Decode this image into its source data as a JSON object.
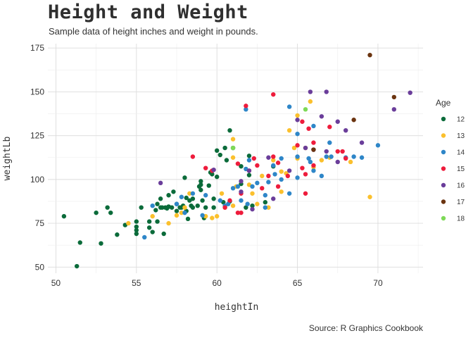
{
  "chart_data": {
    "type": "scatter",
    "title": "Height and Weight",
    "subtitle": "Sample data of height inches and weight in pounds.",
    "caption": "Source: R Graphics Cookbook",
    "xlabel": "heightIn",
    "ylabel": "weightLb",
    "xlim": [
      49.5,
      72.8
    ],
    "ylim": [
      46.5,
      177.5
    ],
    "xticks": [
      50,
      55,
      60,
      65,
      70
    ],
    "yticks": [
      50,
      75,
      100,
      125,
      150,
      175
    ],
    "grid": true,
    "legend": {
      "title": "Age",
      "position": "right",
      "entries": [
        {
          "label": "12",
          "color": "#0b6b3a"
        },
        {
          "label": "13",
          "color": "#fbc02d"
        },
        {
          "label": "14",
          "color": "#2e86c8"
        },
        {
          "label": "15",
          "color": "#ee1c3c"
        },
        {
          "label": "16",
          "color": "#6a3d9a"
        },
        {
          "label": "17",
          "color": "#6b3410"
        },
        {
          "label": "18",
          "color": "#7ed957"
        }
      ]
    },
    "series": [
      {
        "name": "12",
        "color": "#0b6b3a",
        "points": [
          [
            50.5,
            79
          ],
          [
            51.3,
            50.5
          ],
          [
            51.5,
            64
          ],
          [
            52.5,
            81
          ],
          [
            52.8,
            63.5
          ],
          [
            53.2,
            84
          ],
          [
            53.4,
            81
          ],
          [
            53.8,
            68.5
          ],
          [
            54.3,
            74
          ],
          [
            55,
            73
          ],
          [
            55,
            71
          ],
          [
            55,
            69
          ],
          [
            55,
            76
          ],
          [
            55.3,
            84
          ],
          [
            55.8,
            76
          ],
          [
            55.8,
            72.5
          ],
          [
            56,
            70
          ],
          [
            56.2,
            82.5
          ],
          [
            56.3,
            86
          ],
          [
            56.3,
            76
          ],
          [
            56.5,
            84
          ],
          [
            56.5,
            89
          ],
          [
            56.6,
            84
          ],
          [
            56.7,
            69
          ],
          [
            56.8,
            84
          ],
          [
            56.9,
            83.5
          ],
          [
            57,
            84.5
          ],
          [
            57,
            91
          ],
          [
            57.2,
            84
          ],
          [
            57.3,
            93
          ],
          [
            57.5,
            82
          ],
          [
            57.5,
            86
          ],
          [
            57.7,
            84
          ],
          [
            57.8,
            84
          ],
          [
            57.9,
            85
          ],
          [
            58,
            101
          ],
          [
            58.1,
            89.5
          ],
          [
            58.1,
            82
          ],
          [
            58.2,
            77.5
          ],
          [
            58.3,
            88
          ],
          [
            58.4,
            85
          ],
          [
            58.5,
            89
          ],
          [
            58.5,
            84
          ],
          [
            58.8,
            85
          ],
          [
            58.9,
            96
          ],
          [
            59,
            97
          ],
          [
            59,
            99
          ],
          [
            59,
            94
          ],
          [
            59.1,
            88
          ],
          [
            59.2,
            78
          ],
          [
            59.3,
            84
          ],
          [
            59.5,
            96.5
          ],
          [
            59.6,
            104
          ],
          [
            59.7,
            103
          ],
          [
            59.8,
            89
          ],
          [
            59.8,
            84
          ],
          [
            60,
            101.5
          ],
          [
            60,
            116.5
          ],
          [
            60.2,
            114
          ],
          [
            60.4,
            87
          ],
          [
            60.5,
            118
          ],
          [
            60.6,
            111
          ],
          [
            60.8,
            128
          ],
          [
            60.8,
            87.5
          ],
          [
            61,
            118
          ],
          [
            61.5,
            107.5
          ],
          [
            61.5,
            97.5
          ],
          [
            61.8,
            84
          ],
          [
            62,
            113.5
          ],
          [
            62,
            102.5
          ],
          [
            62.2,
            85
          ],
          [
            63,
            87
          ],
          [
            63.5,
            107.5
          ]
        ]
      },
      {
        "name": "13",
        "color": "#fbc02d",
        "points": [
          [
            54.5,
            75
          ],
          [
            56,
            79
          ],
          [
            57,
            75
          ],
          [
            57.5,
            79.5
          ],
          [
            57.8,
            81
          ],
          [
            58,
            84
          ],
          [
            58.3,
            92
          ],
          [
            59.3,
            79
          ],
          [
            59.7,
            78
          ],
          [
            60,
            79
          ],
          [
            60.3,
            92
          ],
          [
            60.5,
            84
          ],
          [
            61,
            112.5
          ],
          [
            61,
            123
          ],
          [
            61,
            85
          ],
          [
            61.2,
            96
          ],
          [
            62,
            97
          ],
          [
            62.2,
            92
          ],
          [
            62.5,
            86
          ],
          [
            62.8,
            102
          ],
          [
            63.2,
            84
          ],
          [
            63.5,
            111
          ],
          [
            64,
            104.5
          ],
          [
            64,
            93
          ],
          [
            64.3,
            103.5
          ],
          [
            64.5,
            128
          ],
          [
            64.8,
            118
          ],
          [
            65,
            136.5
          ],
          [
            65,
            112
          ],
          [
            65.5,
            118
          ],
          [
            65.8,
            144.5
          ],
          [
            66,
            107
          ],
          [
            66.5,
            111
          ],
          [
            67,
            112.5
          ],
          [
            68.3,
            110
          ],
          [
            69.5,
            90
          ]
        ]
      },
      {
        "name": "14",
        "color": "#2e86c8",
        "points": [
          [
            55.5,
            67
          ],
          [
            56,
            85
          ],
          [
            57.5,
            86
          ],
          [
            57.8,
            90
          ],
          [
            58,
            81
          ],
          [
            58.5,
            92
          ],
          [
            59.1,
            79.5
          ],
          [
            59.3,
            91
          ],
          [
            60.2,
            88
          ],
          [
            60.5,
            85
          ],
          [
            60.7,
            86
          ],
          [
            61,
            95
          ],
          [
            61.3,
            96
          ],
          [
            61.5,
            88
          ],
          [
            61.8,
            106
          ],
          [
            61.8,
            140
          ],
          [
            61.9,
            86
          ],
          [
            62,
            111
          ],
          [
            62.2,
            96
          ],
          [
            62.5,
            98
          ],
          [
            63,
            84
          ],
          [
            63,
            91
          ],
          [
            63.2,
            98.5
          ],
          [
            63.5,
            108
          ],
          [
            63.6,
            103
          ],
          [
            64,
            100
          ],
          [
            64,
            112
          ],
          [
            64.5,
            141.5
          ],
          [
            64.5,
            92
          ],
          [
            65,
            126
          ],
          [
            65,
            113
          ],
          [
            65,
            101
          ],
          [
            65.7,
            112
          ],
          [
            65.8,
            110
          ],
          [
            66,
            105
          ],
          [
            66,
            130.5
          ],
          [
            66.5,
            102
          ],
          [
            66.8,
            113
          ],
          [
            67,
            121
          ],
          [
            67.1,
            113
          ],
          [
            68,
            112.5
          ],
          [
            68.5,
            113
          ],
          [
            69,
            112.5
          ],
          [
            70,
            119.5
          ]
        ]
      },
      {
        "name": "15",
        "color": "#ee1c3c",
        "points": [
          [
            58.5,
            113
          ],
          [
            59.3,
            106.5
          ],
          [
            59.7,
            105
          ],
          [
            60.5,
            84
          ],
          [
            60.8,
            88
          ],
          [
            61.3,
            81
          ],
          [
            61.3,
            109
          ],
          [
            61.5,
            81
          ],
          [
            61.5,
            92
          ],
          [
            61.8,
            142
          ],
          [
            62,
            105
          ],
          [
            62.3,
            112
          ],
          [
            62.5,
            108
          ],
          [
            62.8,
            95
          ],
          [
            63.2,
            102
          ],
          [
            63.5,
            148.5
          ],
          [
            63.5,
            113
          ],
          [
            63.8,
            96
          ],
          [
            64.4,
            102
          ],
          [
            65,
            119.5
          ],
          [
            65.3,
            106.5
          ],
          [
            65.3,
            133
          ],
          [
            65.5,
            103
          ],
          [
            65.5,
            92
          ],
          [
            66,
            121
          ],
          [
            66,
            108
          ],
          [
            67,
            130
          ],
          [
            67.5,
            116
          ],
          [
            67.8,
            116
          ],
          [
            68,
            112
          ],
          [
            63.8,
            109.5
          ],
          [
            65.7,
            129
          ]
        ]
      },
      {
        "name": "16",
        "color": "#6a3d9a",
        "points": [
          [
            56.5,
            98
          ],
          [
            59.8,
            105.5
          ],
          [
            61.5,
            99
          ],
          [
            61.5,
            93
          ],
          [
            62,
            105
          ],
          [
            62.2,
            83
          ],
          [
            63.2,
            112.5
          ],
          [
            63.5,
            89
          ],
          [
            64.5,
            105
          ],
          [
            65,
            134
          ],
          [
            65.5,
            118
          ],
          [
            66.8,
            150
          ],
          [
            66,
            117
          ],
          [
            66.5,
            136
          ],
          [
            66.8,
            116
          ],
          [
            67.5,
            110
          ],
          [
            67.5,
            133
          ],
          [
            68,
            128
          ],
          [
            69,
            121
          ],
          [
            71,
            140
          ],
          [
            72,
            149.5
          ],
          [
            65.8,
            150
          ]
        ]
      },
      {
        "name": "17",
        "color": "#6b3410",
        "points": [
          [
            66,
            117
          ],
          [
            68.5,
            134
          ],
          [
            69.5,
            171
          ],
          [
            71,
            147
          ]
        ]
      },
      {
        "name": "18",
        "color": "#7ed957",
        "points": [
          [
            61,
            118
          ],
          [
            65.5,
            140
          ]
        ]
      }
    ]
  }
}
